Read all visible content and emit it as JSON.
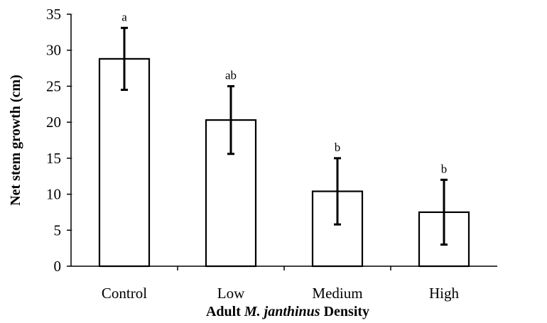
{
  "chart_data": {
    "type": "bar",
    "categories": [
      "Control",
      "Low",
      "Medium",
      "High"
    ],
    "values": [
      28.8,
      20.3,
      10.4,
      7.5
    ],
    "errors": [
      4.3,
      4.7,
      4.6,
      4.5
    ],
    "significance": [
      "a",
      "ab",
      "b",
      "b"
    ],
    "xlabel_parts": [
      {
        "text": "Adult ",
        "italic": false
      },
      {
        "text": "M. janthinus",
        "italic": true
      },
      {
        "text": " Density",
        "italic": false
      }
    ],
    "ylabel": "Net stem growth (cm)",
    "ylim": [
      0,
      35
    ],
    "yticks": [
      "0",
      "5",
      "10",
      "15",
      "20",
      "25",
      "30",
      "35"
    ],
    "bar_color": "#ffffff",
    "edge_color": "#000000"
  }
}
